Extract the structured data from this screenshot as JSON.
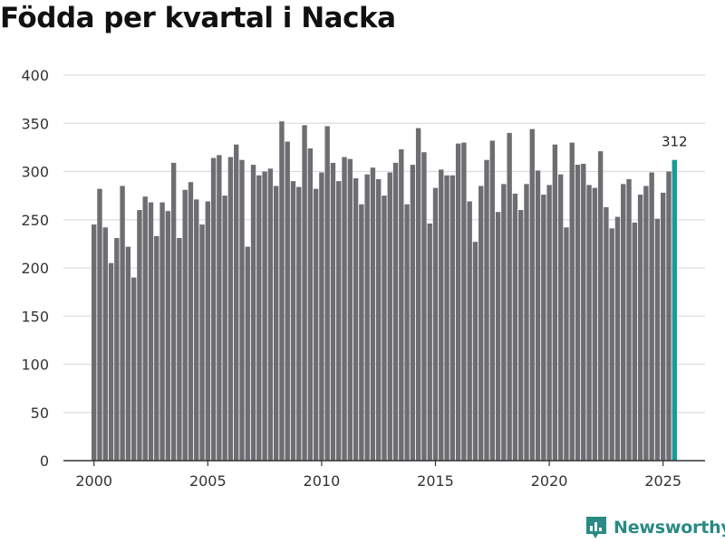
{
  "title": "Födda per kvartal i Nacka",
  "brand": {
    "name": "Newsworthy",
    "icon": "newsworthy-logo-icon",
    "color": "#2a8a84"
  },
  "colors": {
    "bar": "#6e6e72",
    "highlight": "#179c93",
    "grid": "#dddddd",
    "axis": "#333333",
    "text": "#333333"
  },
  "chart_data": {
    "type": "bar",
    "title": "Födda per kvartal i Nacka",
    "xlabel": "",
    "ylabel": "",
    "ylim": [
      0,
      400
    ],
    "yticks": [
      0,
      50,
      100,
      150,
      200,
      250,
      300,
      350,
      400
    ],
    "xticks": [
      2000,
      2005,
      2010,
      2015,
      2020,
      2025
    ],
    "grid": true,
    "start": {
      "year": 2000,
      "quarter": 1
    },
    "series": [
      {
        "values": [
          245,
          282,
          242,
          205,
          231,
          285,
          222,
          190,
          260,
          274,
          268,
          233,
          268,
          259,
          309,
          231,
          281,
          289,
          271,
          245,
          269,
          314,
          317,
          275,
          315,
          328,
          312,
          222,
          307,
          296,
          300,
          303,
          285,
          352,
          331,
          290,
          284,
          348,
          324,
          282,
          299,
          347,
          309,
          290,
          315,
          313,
          293,
          266,
          297,
          304,
          292,
          275,
          299,
          309,
          323,
          266,
          307,
          345,
          320,
          246,
          283,
          302,
          296,
          296,
          329,
          330,
          269,
          227,
          285,
          312,
          332,
          258,
          287,
          340,
          277,
          260,
          287,
          344,
          301,
          276,
          286,
          328,
          297,
          242,
          330,
          307,
          308,
          286,
          283,
          321,
          263,
          241,
          253,
          287,
          292,
          247,
          276,
          285,
          299,
          251,
          278,
          300,
          312
        ]
      }
    ],
    "highlight": {
      "index": 102,
      "label": "312"
    }
  }
}
